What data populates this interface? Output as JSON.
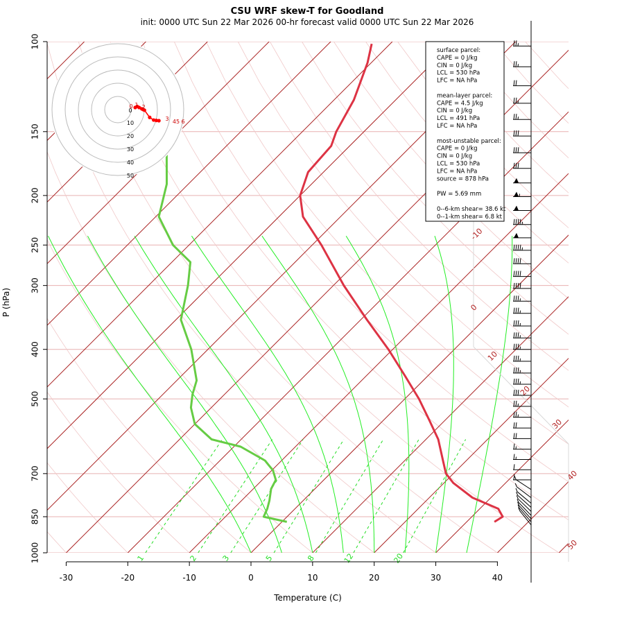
{
  "page": {
    "title": "CSU WRF skew-T for Goodland",
    "subtitle": "init: 0000 UTC Sun 22 Mar 2026     00-hr forecast valid 0000 UTC Sun 22 Mar 2026"
  },
  "chart_data": {
    "type": "line",
    "subtype": "skew-T log-P sounding",
    "xlabel": "Temperature (C)",
    "ylabel": "P (hPa)",
    "x_ticks": [
      -30,
      -20,
      -10,
      0,
      10,
      20,
      30,
      40
    ],
    "y_ticks": [
      100,
      150,
      200,
      250,
      300,
      400,
      500,
      700,
      850,
      1000
    ],
    "xlim": [
      -33,
      44
    ],
    "ylim": [
      1000,
      100
    ],
    "skew_deg": 45,
    "series": [
      {
        "role": "temperature",
        "color": "#dd3344",
        "points": [
          {
            "p": 870,
            "t": 34.5
          },
          {
            "p": 850,
            "t": 35.0
          },
          {
            "p": 820,
            "t": 33.0
          },
          {
            "p": 780,
            "t": 27.0
          },
          {
            "p": 730,
            "t": 21.5
          },
          {
            "p": 700,
            "t": 18.8
          },
          {
            "p": 660,
            "t": 16.2
          },
          {
            "p": 600,
            "t": 12.0
          },
          {
            "p": 550,
            "t": 7.4
          },
          {
            "p": 500,
            "t": 2.3
          },
          {
            "p": 450,
            "t": -3.8
          },
          {
            "p": 400,
            "t": -10.7
          },
          {
            "p": 350,
            "t": -19.0
          },
          {
            "p": 300,
            "t": -28.3
          },
          {
            "p": 250,
            "t": -38.5
          },
          {
            "p": 220,
            "t": -46.1
          },
          {
            "p": 200,
            "t": -50.0
          },
          {
            "p": 180,
            "t": -52.5
          },
          {
            "p": 160,
            "t": -53.0
          },
          {
            "p": 150,
            "t": -54.5
          },
          {
            "p": 130,
            "t": -56.8
          },
          {
            "p": 110,
            "t": -60.6
          },
          {
            "p": 101,
            "t": -63.0
          }
        ]
      },
      {
        "role": "dewpoint",
        "color": "#66cc44",
        "points": [
          {
            "p": 870,
            "t": 0.8
          },
          {
            "p": 850,
            "t": -3.8
          },
          {
            "p": 820,
            "t": -4.5
          },
          {
            "p": 790,
            "t": -5.5
          },
          {
            "p": 750,
            "t": -7.1
          },
          {
            "p": 720,
            "t": -7.8
          },
          {
            "p": 690,
            "t": -9.8
          },
          {
            "p": 660,
            "t": -12.7
          },
          {
            "p": 620,
            "t": -18.9
          },
          {
            "p": 600,
            "t": -24.8
          },
          {
            "p": 560,
            "t": -30.0
          },
          {
            "p": 520,
            "t": -33.3
          },
          {
            "p": 490,
            "t": -35.2
          },
          {
            "p": 460,
            "t": -36.8
          },
          {
            "p": 400,
            "t": -42.7
          },
          {
            "p": 350,
            "t": -49.2
          },
          {
            "p": 300,
            "t": -53.6
          },
          {
            "p": 270,
            "t": -57.0
          },
          {
            "p": 250,
            "t": -62.6
          },
          {
            "p": 220,
            "t": -69.5
          },
          {
            "p": 190,
            "t": -73.5
          },
          {
            "p": 165,
            "t": -78.6
          }
        ]
      }
    ],
    "isotherm_labels": [
      "-10",
      "0",
      "10",
      "20",
      "30",
      "40",
      "50"
    ],
    "mixing_ratio_labels": [
      "1",
      "2",
      "3",
      "5",
      "8",
      "12",
      "20"
    ],
    "hodograph": {
      "rings": [
        "10",
        "20",
        "30",
        "40",
        "50"
      ],
      "center_label": "0",
      "height_labels": [
        "0",
        "1",
        "2",
        "3",
        "45",
        "6"
      ],
      "points": [
        [
          0,
          0
        ],
        [
          1.5,
          0.8
        ],
        [
          3,
          0
        ],
        [
          5,
          -1
        ],
        [
          6,
          -1.5
        ],
        [
          7,
          -2
        ],
        [
          11,
          -7.5
        ],
        [
          14,
          -9.5
        ],
        [
          16,
          -9.8
        ],
        [
          18,
          -10
        ]
      ]
    },
    "wind_barbs_kt": [
      {
        "p": 102,
        "spd": 25
      },
      {
        "p": 112,
        "spd": 25
      },
      {
        "p": 122,
        "spd": 20
      },
      {
        "p": 132,
        "spd": 25
      },
      {
        "p": 142,
        "spd": 25
      },
      {
        "p": 153,
        "spd": 30
      },
      {
        "p": 165,
        "spd": 30
      },
      {
        "p": 177,
        "spd": 30
      },
      {
        "p": 189,
        "spd": 50
      },
      {
        "p": 201,
        "spd": 55
      },
      {
        "p": 214,
        "spd": 50
      },
      {
        "p": 228,
        "spd": 45
      },
      {
        "p": 242,
        "spd": 50
      },
      {
        "p": 256,
        "spd": 45
      },
      {
        "p": 272,
        "spd": 40
      },
      {
        "p": 288,
        "spd": 40
      },
      {
        "p": 304,
        "spd": 40
      },
      {
        "p": 322,
        "spd": 35
      },
      {
        "p": 340,
        "spd": 35
      },
      {
        "p": 360,
        "spd": 35
      },
      {
        "p": 380,
        "spd": 35
      },
      {
        "p": 400,
        "spd": 35
      },
      {
        "p": 422,
        "spd": 35
      },
      {
        "p": 445,
        "spd": 35
      },
      {
        "p": 468,
        "spd": 35
      },
      {
        "p": 492,
        "spd": 30
      },
      {
        "p": 517,
        "spd": 25
      },
      {
        "p": 543,
        "spd": 25
      },
      {
        "p": 570,
        "spd": 20
      },
      {
        "p": 598,
        "spd": 20
      },
      {
        "p": 627,
        "spd": 15
      },
      {
        "p": 657,
        "spd": 15
      },
      {
        "p": 688,
        "spd": 10
      },
      {
        "p": 720,
        "spd": 10
      },
      {
        "p": 752,
        "spd": 10
      },
      {
        "p": 780,
        "spd": 10
      },
      {
        "p": 800,
        "spd": 10
      },
      {
        "p": 815,
        "spd": 10
      },
      {
        "p": 830,
        "spd": 10
      },
      {
        "p": 845,
        "spd": 10
      },
      {
        "p": 858,
        "spd": 10
      },
      {
        "p": 870,
        "spd": 10
      },
      {
        "p": 882,
        "spd": 10
      }
    ]
  },
  "info_box": {
    "lines": [
      "surface parcel:",
      "CAPE = 0 J/kg",
      "CIN = 0 J/kg",
      "LCL = 530 hPa",
      "LFC = NA hPa",
      "",
      "mean-layer parcel:",
      "CAPE = 4.5 J/kg",
      "CIN = 0 J/kg",
      "LCL = 491 hPa",
      "LFC = NA hPa",
      "",
      "most-unstable parcel:",
      "CAPE = 0 J/kg",
      "CIN = 0 J/kg",
      "LCL = 530 hPa",
      "LFC = NA hPa",
      "source = 878 hPa",
      "",
      "PW =  5.69 mm",
      "",
      "0--6-km shear= 38.6 kt",
      "0--1-km shear= 6.8 kt"
    ]
  },
  "colors": {
    "isotherm": "#aa2222",
    "isobar": "#e8b0b0",
    "dry_adiabat": "#f0c8c8",
    "moist_adiabat": "#22ee22",
    "mixing_ratio": "#22dd22",
    "temperature": "#dd3344",
    "dewpoint": "#66cc44",
    "hodo_trace": "#ff0000"
  }
}
